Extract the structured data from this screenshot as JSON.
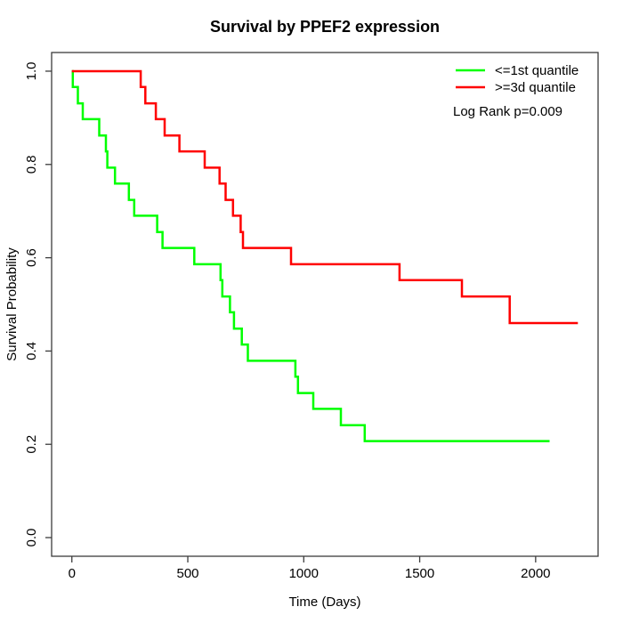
{
  "title": "Survival by PPEF2 expression",
  "x_axis": {
    "label": "Time (Days)",
    "tick_labels": [
      "0",
      "500",
      "1000",
      "1500",
      "2000"
    ]
  },
  "y_axis": {
    "label": "Survival Probability",
    "tick_labels": [
      "0.0",
      "0.2",
      "0.4",
      "0.6",
      "0.8",
      "1.0"
    ]
  },
  "legend": {
    "items": [
      {
        "key": "le-1st-quantile",
        "label": "<=1st quantile",
        "color": "#00ff00"
      },
      {
        "key": "ge-3d-quantile",
        "label": ">=3d quantile",
        "color": "#ff0000"
      }
    ],
    "annotation": "Log Rank p=0.009"
  },
  "chart_data": {
    "type": "line",
    "subtype": "kaplan-meier-step",
    "title": "Survival by PPEF2 expression",
    "xlabel": "Time (Days)",
    "ylabel": "Survival Probability",
    "xlim": [
      0,
      2182
    ],
    "ylim": [
      0,
      1
    ],
    "x_ticks": [
      0,
      500,
      1000,
      1500,
      2000
    ],
    "y_ticks": [
      0.0,
      0.2,
      0.4,
      0.6,
      0.8,
      1.0
    ],
    "grid": false,
    "legend_position": "top-right",
    "annotation": "Log Rank p=0.009",
    "axis_padding_fraction": 0.04,
    "series": [
      {
        "name": "<=1st quantile",
        "key": "le-1st-quantile",
        "color": "#00ff00",
        "points": [
          [
            0,
            1.0
          ],
          [
            4,
            0.966
          ],
          [
            26,
            0.931
          ],
          [
            47,
            0.897
          ],
          [
            118,
            0.862
          ],
          [
            147,
            0.828
          ],
          [
            153,
            0.793
          ],
          [
            186,
            0.759
          ],
          [
            246,
            0.724
          ],
          [
            269,
            0.69
          ],
          [
            368,
            0.655
          ],
          [
            391,
            0.621
          ],
          [
            528,
            0.586
          ],
          [
            641,
            0.552
          ],
          [
            649,
            0.517
          ],
          [
            682,
            0.483
          ],
          [
            699,
            0.448
          ],
          [
            733,
            0.414
          ],
          [
            759,
            0.379
          ],
          [
            964,
            0.345
          ],
          [
            975,
            0.31
          ],
          [
            1041,
            0.276
          ],
          [
            1160,
            0.241
          ],
          [
            1263,
            0.207
          ],
          [
            2060,
            0.207
          ]
        ]
      },
      {
        "name": ">=3d quantile",
        "key": "ge-3d-quantile",
        "color": "#ff0000",
        "points": [
          [
            0,
            1.0
          ],
          [
            297,
            0.966
          ],
          [
            317,
            0.931
          ],
          [
            362,
            0.897
          ],
          [
            400,
            0.862
          ],
          [
            464,
            0.828
          ],
          [
            573,
            0.793
          ],
          [
            637,
            0.759
          ],
          [
            663,
            0.724
          ],
          [
            695,
            0.69
          ],
          [
            728,
            0.655
          ],
          [
            738,
            0.621
          ],
          [
            945,
            0.586
          ],
          [
            1413,
            0.552
          ],
          [
            1682,
            0.517
          ],
          [
            1888,
            0.46
          ],
          [
            2182,
            0.46
          ]
        ]
      }
    ]
  }
}
